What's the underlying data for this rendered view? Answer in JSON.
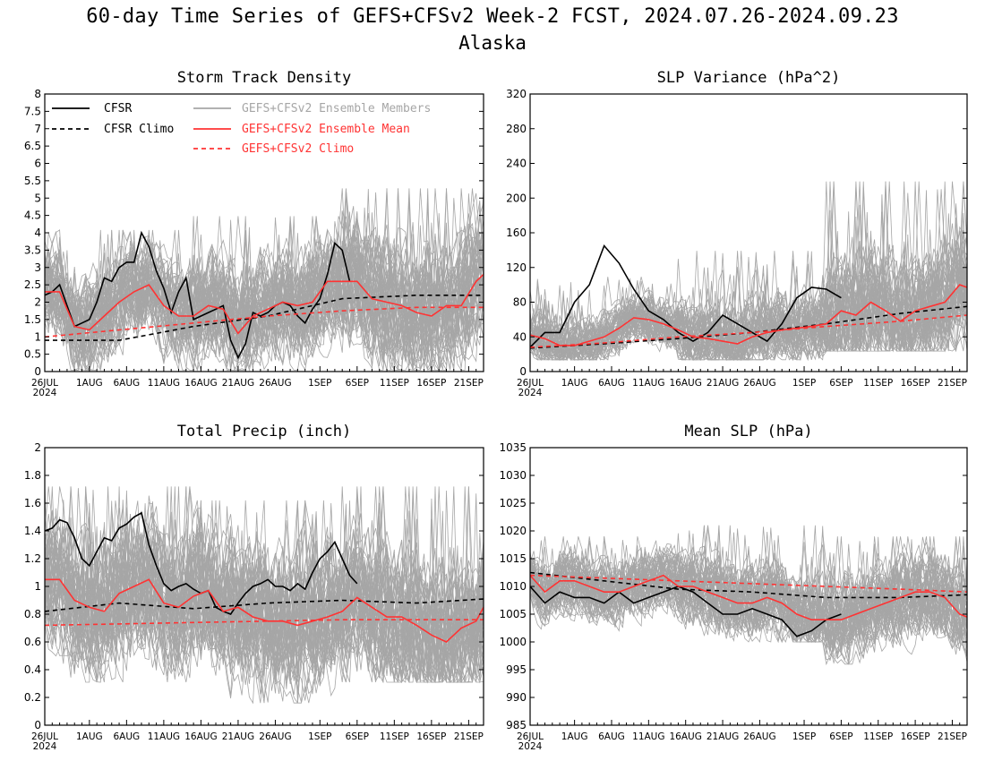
{
  "header": {
    "title": "60-day Time Series of GEFS+CFSv2 Week-2 FCST, 2024.07.26-2024.09.23",
    "region": "Alaska"
  },
  "colors": {
    "cfsr": "#000000",
    "members": "#a6a6a6",
    "ens_mean": "#ff3333",
    "gefs_climo": "#ff3333"
  },
  "legend": {
    "cfsr": "CFSR",
    "cfsr_climo": "CFSR Climo",
    "members": "GEFS+CFSv2 Ensemble Members",
    "ens_mean": "GEFS+CFSv2 Ensemble Mean",
    "gefs_climo": "GEFS+CFSv2 Climo"
  },
  "chart_data": [
    {
      "type": "line",
      "title": "Storm Track Density",
      "x_range": [
        0,
        59
      ],
      "ylim": [
        0,
        8
      ],
      "yticks": [
        0,
        0.5,
        1,
        1.5,
        2,
        2.5,
        3,
        3.5,
        4,
        4.5,
        5,
        5.5,
        6,
        6.5,
        7,
        7.5,
        8
      ],
      "ytick_labels": [
        "0",
        "0.5",
        "1",
        "1.5",
        "2",
        "2.5",
        "3",
        "3.5",
        "4",
        "4.5",
        "5",
        "5.5",
        "6",
        "6.5",
        "7",
        "7.5",
        "8"
      ],
      "xticks": [
        0,
        6,
        11,
        16,
        21,
        26,
        31,
        37,
        42,
        47,
        52,
        57
      ],
      "xtick_labels": [
        "26JUL",
        "1AUG",
        "6AUG",
        "11AUG",
        "16AUG",
        "21AUG",
        "26AUG",
        "1SEP",
        "6SEP",
        "11SEP",
        "16SEP",
        "21SEP"
      ],
      "xtick_year": "2024",
      "legend_position": "top-left",
      "envelope": {
        "low": [
          0.2,
          0.2,
          0.2
        ],
        "high": [
          3.6,
          4.0,
          4.8
        ]
      },
      "series": [
        {
          "name": "CFSR",
          "style": "solid",
          "color": "#000000",
          "x": [
            0,
            1,
            2,
            3,
            4,
            5,
            6,
            7,
            8,
            9,
            10,
            11,
            12,
            13,
            14,
            15,
            16,
            17,
            18,
            19,
            20,
            21,
            22,
            23,
            24,
            25,
            26,
            27,
            28,
            29,
            30,
            31,
            32,
            33,
            34,
            35,
            36,
            37,
            38,
            39,
            40,
            41
          ],
          "values": [
            2.2,
            2.3,
            2.5,
            1.9,
            1.3,
            1.4,
            1.5,
            2.0,
            2.7,
            2.6,
            3.0,
            3.15,
            3.15,
            4.0,
            3.6,
            2.9,
            2.4,
            1.7,
            2.3,
            2.7,
            1.5,
            1.6,
            1.7,
            1.8,
            1.9,
            0.9,
            0.4,
            0.8,
            1.7,
            1.6,
            1.7,
            1.9,
            2.0,
            1.9,
            1.6,
            1.4,
            1.8,
            2.1,
            2.8,
            3.7,
            3.5,
            2.6
          ]
        },
        {
          "name": "CFSR Climo",
          "style": "dashed",
          "color": "#000000",
          "x": [
            0,
            10,
            20,
            30,
            40,
            50,
            59
          ],
          "values": [
            0.9,
            0.9,
            1.3,
            1.6,
            2.1,
            2.2,
            2.2
          ]
        },
        {
          "name": "GEFS+CFSv2 Ensemble Mean",
          "style": "solid",
          "color": "#ff3333",
          "x": [
            0,
            2,
            4,
            6,
            8,
            10,
            12,
            14,
            16,
            18,
            20,
            22,
            24,
            26,
            28,
            30,
            32,
            34,
            36,
            38,
            40,
            42,
            44,
            46,
            48,
            50,
            52,
            54,
            56,
            58,
            59
          ],
          "values": [
            2.3,
            2.3,
            1.3,
            1.2,
            1.6,
            2.0,
            2.3,
            2.5,
            1.9,
            1.6,
            1.6,
            1.9,
            1.8,
            1.1,
            1.6,
            1.8,
            2.0,
            1.9,
            2.0,
            2.6,
            2.6,
            2.6,
            2.1,
            2.0,
            1.9,
            1.7,
            1.6,
            1.9,
            1.9,
            2.6,
            2.8
          ]
        },
        {
          "name": "GEFS+CFSv2 Climo",
          "style": "dashed",
          "color": "#ff3333",
          "x": [
            0,
            10,
            20,
            30,
            40,
            50,
            59
          ],
          "values": [
            1.0,
            1.2,
            1.4,
            1.6,
            1.75,
            1.85,
            1.85
          ]
        }
      ]
    },
    {
      "type": "line",
      "title": "SLP Variance (hPa^2)",
      "x_range": [
        0,
        59
      ],
      "ylim": [
        0,
        320
      ],
      "yticks": [
        0,
        40,
        80,
        120,
        160,
        200,
        240,
        280,
        320
      ],
      "ytick_labels": [
        "0",
        "40",
        "80",
        "120",
        "160",
        "200",
        "240",
        "280",
        "320"
      ],
      "xticks": [
        0,
        6,
        11,
        16,
        21,
        26,
        31,
        37,
        42,
        47,
        52,
        57
      ],
      "xtick_labels": [
        "26JUL",
        "1AUG",
        "6AUG",
        "11AUG",
        "16AUG",
        "21AUG",
        "26AUG",
        "1SEP",
        "6SEP",
        "11SEP",
        "16SEP",
        "21SEP"
      ],
      "xtick_year": "2024",
      "envelope": {
        "low": [
          20,
          20,
          30
        ],
        "high": [
          90,
          120,
          200
        ]
      },
      "series": [
        {
          "name": "CFSR",
          "style": "solid",
          "color": "#000000",
          "x": [
            0,
            2,
            4,
            6,
            8,
            10,
            12,
            14,
            16,
            18,
            20,
            22,
            24,
            26,
            28,
            30,
            32,
            34,
            36,
            38,
            40,
            42
          ],
          "values": [
            28,
            45,
            45,
            80,
            100,
            145,
            125,
            95,
            70,
            60,
            45,
            35,
            45,
            65,
            55,
            45,
            35,
            55,
            85,
            97,
            95,
            85
          ]
        },
        {
          "name": "CFSR Climo",
          "style": "dashed",
          "color": "#000000",
          "x": [
            0,
            10,
            20,
            30,
            40,
            50,
            59
          ],
          "values": [
            27,
            32,
            38,
            45,
            55,
            67,
            75
          ]
        },
        {
          "name": "GEFS+CFSv2 Ensemble Mean",
          "style": "solid",
          "color": "#ff3333",
          "x": [
            0,
            2,
            4,
            6,
            8,
            10,
            12,
            14,
            16,
            18,
            20,
            22,
            24,
            26,
            28,
            30,
            32,
            34,
            36,
            38,
            40,
            42,
            44,
            46,
            48,
            50,
            52,
            54,
            56,
            58,
            59
          ],
          "values": [
            42,
            38,
            30,
            30,
            35,
            40,
            50,
            62,
            60,
            55,
            48,
            40,
            38,
            35,
            32,
            40,
            45,
            48,
            50,
            52,
            55,
            70,
            65,
            80,
            70,
            58,
            70,
            75,
            80,
            100,
            97
          ]
        },
        {
          "name": "GEFS+CFSv2 Climo",
          "style": "dashed",
          "color": "#ff3333",
          "x": [
            0,
            10,
            20,
            30,
            40,
            50,
            59
          ],
          "values": [
            28,
            33,
            40,
            45,
            52,
            58,
            65
          ]
        }
      ]
    },
    {
      "type": "line",
      "title": "Total Precip (inch)",
      "x_range": [
        0,
        59
      ],
      "ylim": [
        0,
        2
      ],
      "yticks": [
        0,
        0.2,
        0.4,
        0.6,
        0.8,
        1,
        1.2,
        1.4,
        1.6,
        1.8,
        2
      ],
      "ytick_labels": [
        "0",
        "0.2",
        "0.4",
        "0.6",
        "0.8",
        "1",
        "1.2",
        "1.4",
        "1.6",
        "1.8",
        "2"
      ],
      "xticks": [
        0,
        6,
        11,
        16,
        21,
        26,
        31,
        37,
        42,
        47,
        52,
        57
      ],
      "xtick_labels": [
        "26JUL",
        "1AUG",
        "6AUG",
        "11AUG",
        "16AUG",
        "21AUG",
        "26AUG",
        "1SEP",
        "6SEP",
        "11SEP",
        "16SEP",
        "21SEP"
      ],
      "xtick_year": "2024",
      "envelope": {
        "low": [
          0.35,
          0.2,
          0.35
        ],
        "high": [
          1.6,
          1.5,
          1.6
        ]
      },
      "series": [
        {
          "name": "CFSR",
          "style": "solid",
          "color": "#000000",
          "x": [
            0,
            1,
            2,
            3,
            4,
            5,
            6,
            7,
            8,
            9,
            10,
            11,
            12,
            13,
            14,
            15,
            16,
            17,
            18,
            19,
            20,
            21,
            22,
            23,
            24,
            25,
            26,
            27,
            28,
            29,
            30,
            31,
            32,
            33,
            34,
            35,
            36,
            37,
            38,
            39,
            40,
            41,
            42
          ],
          "values": [
            1.4,
            1.42,
            1.48,
            1.46,
            1.35,
            1.2,
            1.15,
            1.25,
            1.35,
            1.33,
            1.42,
            1.45,
            1.5,
            1.53,
            1.3,
            1.15,
            1.02,
            0.97,
            1.0,
            1.02,
            0.98,
            0.95,
            0.97,
            0.85,
            0.82,
            0.8,
            0.88,
            0.95,
            1.0,
            1.02,
            1.05,
            1.0,
            1.0,
            0.97,
            1.02,
            0.98,
            1.1,
            1.2,
            1.25,
            1.32,
            1.2,
            1.08,
            1.02
          ]
        },
        {
          "name": "CFSR Climo",
          "style": "dashed",
          "color": "#000000",
          "x": [
            0,
            10,
            20,
            30,
            40,
            50,
            59
          ],
          "values": [
            0.82,
            0.88,
            0.84,
            0.88,
            0.9,
            0.88,
            0.91
          ]
        },
        {
          "name": "GEFS+CFSv2 Ensemble Mean",
          "style": "solid",
          "color": "#ff3333",
          "x": [
            0,
            2,
            4,
            6,
            8,
            10,
            12,
            14,
            16,
            18,
            20,
            22,
            24,
            26,
            28,
            30,
            32,
            34,
            36,
            38,
            40,
            42,
            44,
            46,
            48,
            50,
            52,
            54,
            56,
            58,
            59
          ],
          "values": [
            1.05,
            1.05,
            0.9,
            0.85,
            0.82,
            0.95,
            1.0,
            1.05,
            0.88,
            0.85,
            0.93,
            0.97,
            0.82,
            0.85,
            0.78,
            0.75,
            0.75,
            0.72,
            0.75,
            0.78,
            0.82,
            0.92,
            0.85,
            0.78,
            0.78,
            0.72,
            0.65,
            0.6,
            0.7,
            0.75,
            0.85
          ]
        },
        {
          "name": "GEFS+CFSv2 Climo",
          "style": "dashed",
          "color": "#ff3333",
          "x": [
            0,
            10,
            20,
            30,
            40,
            50,
            59
          ],
          "values": [
            0.72,
            0.73,
            0.74,
            0.75,
            0.76,
            0.76,
            0.76
          ]
        }
      ]
    },
    {
      "type": "line",
      "title": "Mean SLP (hPa)",
      "x_range": [
        0,
        59
      ],
      "ylim": [
        985,
        1035
      ],
      "yticks": [
        985,
        990,
        995,
        1000,
        1005,
        1010,
        1015,
        1020,
        1025,
        1030,
        1035
      ],
      "ytick_labels": [
        "985",
        "990",
        "995",
        "1000",
        "1005",
        "1010",
        "1015",
        "1020",
        "1025",
        "1030",
        "1035"
      ],
      "xticks": [
        0,
        6,
        11,
        16,
        21,
        26,
        31,
        37,
        42,
        47,
        52,
        57
      ],
      "xtick_labels": [
        "26JUL",
        "1AUG",
        "6AUG",
        "11AUG",
        "16AUG",
        "21AUG",
        "26AUG",
        "1SEP",
        "6SEP",
        "11SEP",
        "16SEP",
        "21SEP"
      ],
      "xtick_year": "2024",
      "envelope": {
        "low": [
          1002,
          1001,
          997
        ],
        "high": [
          1016,
          1018,
          1016
        ]
      },
      "series": [
        {
          "name": "CFSR",
          "style": "solid",
          "color": "#000000",
          "x": [
            0,
            2,
            4,
            6,
            8,
            10,
            12,
            14,
            16,
            18,
            20,
            22,
            24,
            26,
            28,
            30,
            32,
            34,
            36,
            38,
            40,
            42
          ],
          "values": [
            1010,
            1007,
            1009,
            1008,
            1008,
            1007,
            1009,
            1007,
            1008,
            1009,
            1010,
            1009,
            1007,
            1005,
            1005,
            1006,
            1005,
            1004,
            1001,
            1002,
            1004,
            1005
          ]
        },
        {
          "name": "CFSR Climo",
          "style": "dashed",
          "color": "#000000",
          "x": [
            0,
            10,
            20,
            30,
            40,
            50,
            59
          ],
          "values": [
            1012.5,
            1011,
            1009.5,
            1009,
            1008,
            1008,
            1008.5
          ]
        },
        {
          "name": "GEFS+CFSv2 Ensemble Mean",
          "style": "solid",
          "color": "#ff3333",
          "x": [
            0,
            2,
            4,
            6,
            8,
            10,
            12,
            14,
            16,
            18,
            20,
            22,
            24,
            26,
            28,
            30,
            32,
            34,
            36,
            38,
            40,
            42,
            44,
            46,
            48,
            50,
            52,
            54,
            56,
            58,
            59
          ],
          "values": [
            1012,
            1009,
            1011,
            1011,
            1010,
            1009,
            1009,
            1010,
            1011,
            1012,
            1010,
            1010,
            1009,
            1008,
            1007,
            1007,
            1008,
            1007,
            1005,
            1004,
            1004,
            1004,
            1005,
            1006,
            1007,
            1008,
            1009,
            1009,
            1008,
            1005,
            1004.5
          ]
        },
        {
          "name": "GEFS+CFSv2 Climo",
          "style": "dashed",
          "color": "#ff3333",
          "x": [
            0,
            10,
            20,
            30,
            40,
            50,
            59
          ],
          "values": [
            1012,
            1011.5,
            1011,
            1010.5,
            1010,
            1009.5,
            1009
          ]
        }
      ]
    }
  ]
}
